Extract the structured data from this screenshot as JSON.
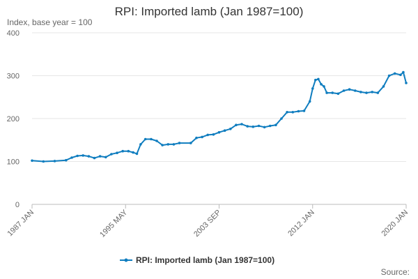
{
  "chart_data": {
    "type": "line",
    "title": "RPI: Imported lamb (Jan 1987=100)",
    "ylabel": "Index, base year = 100",
    "xlabel": "",
    "ylim": [
      0,
      400
    ],
    "yticks": [
      "0",
      "100",
      "200",
      "300",
      "400"
    ],
    "xlim": [
      "1987-01",
      "2020-01"
    ],
    "xticks": [
      "1987 JAN",
      "1995 MAY",
      "2003 SEP",
      "2012 JAN",
      "2020 JAN"
    ],
    "grid": true,
    "legend_position": "bottom",
    "series": [
      {
        "name": "RPI: Imported lamb (Jan 1987=100)",
        "color": "#0f7dbf",
        "x": [
          "1987-01",
          "1988-01",
          "1989-01",
          "1990-01",
          "1990-07",
          "1991-01",
          "1991-07",
          "1992-01",
          "1992-07",
          "1993-01",
          "1993-07",
          "1994-01",
          "1994-07",
          "1995-01",
          "1995-07",
          "1995-12",
          "1996-04",
          "1996-08",
          "1997-01",
          "1997-07",
          "1998-01",
          "1998-07",
          "1999-01",
          "1999-07",
          "2000-01",
          "2001-01",
          "2001-07",
          "2002-01",
          "2002-07",
          "2003-01",
          "2003-07",
          "2004-01",
          "2004-07",
          "2005-01",
          "2005-07",
          "2006-01",
          "2006-07",
          "2007-01",
          "2007-07",
          "2008-01",
          "2008-07",
          "2009-01",
          "2009-07",
          "2010-01",
          "2010-07",
          "2011-01",
          "2011-07",
          "2011-10",
          "2012-01",
          "2012-04",
          "2012-07",
          "2012-10",
          "2013-01",
          "2013-07",
          "2014-01",
          "2014-07",
          "2015-01",
          "2015-07",
          "2016-01",
          "2016-07",
          "2017-01",
          "2017-07",
          "2018-01",
          "2018-07",
          "2019-01",
          "2019-07",
          "2019-10",
          "2020-01"
        ],
        "values": [
          102,
          100,
          101,
          103,
          109,
          113,
          114,
          112,
          108,
          112,
          110,
          117,
          120,
          124,
          124,
          121,
          118,
          140,
          152,
          152,
          148,
          138,
          140,
          140,
          143,
          143,
          155,
          157,
          162,
          163,
          168,
          172,
          176,
          185,
          187,
          182,
          181,
          183,
          180,
          183,
          185,
          200,
          215,
          215,
          217,
          218,
          240,
          270,
          290,
          292,
          280,
          275,
          260,
          260,
          258,
          265,
          268,
          265,
          262,
          260,
          262,
          260,
          275,
          300,
          305,
          302,
          308,
          283
        ]
      }
    ]
  },
  "legend": {
    "label": "RPI: Imported lamb (Jan 1987=100)"
  },
  "source_label": "Source:"
}
